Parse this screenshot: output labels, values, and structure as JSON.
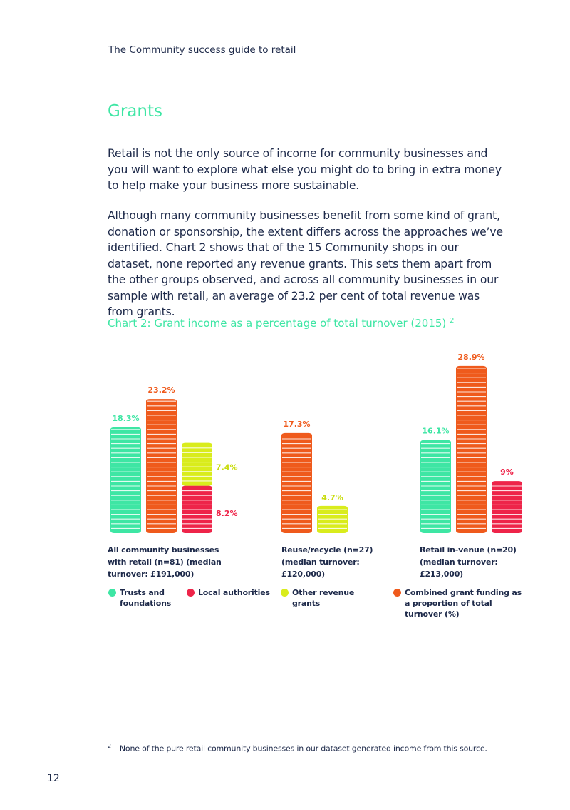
{
  "running_head": "The Community success guide to retail",
  "section_title": "Grants",
  "paragraphs": [
    "Retail is not the only source of income for community businesses and you will want to explore what else you might do to bring in extra money to help make your business more sustainable.",
    "Although many community businesses benefit from some kind of grant, donation or sponsorship, the extent differs across the approaches we’ve identified. Chart 2 shows that of the 15 Community shops in our dataset, none reported any revenue grants. This sets them apart from the other groups observed, and across all community businesses in our sample with retail, an average of 23.2 per cent of total revenue was from grants."
  ],
  "chart_title": "Chart 2: Grant income as a percentage of total turnover (2015)",
  "chart_title_footnote_ref": "2",
  "colors": {
    "trusts": "#3ee6a4",
    "local": "#ee2449",
    "other": "#d9ec1c",
    "combined": "#ef5a1c",
    "text": "#1e2a4a"
  },
  "chart_data": {
    "type": "bar",
    "title": "Chart 2: Grant income as a percentage of total turnover (2015)",
    "categories": [
      "All community businesses with retail (n=81) (median turnover: £191,000)",
      "Reuse/recycle (n=27) (median turnover: £120,000)",
      "Retail in-venue (n=20) (median turnover: £213,000)"
    ],
    "groups": [
      {
        "label_lines": [
          "All community businesses with",
          "retail (n=81) (median turnover:",
          "£191,000)"
        ],
        "bars": [
          {
            "series": "Trusts and foundations",
            "segments": [
              {
                "series": "trusts",
                "value": 18.3,
                "label": "18.3%"
              }
            ]
          },
          {
            "series": "Combined grant funding as a proportion of total turnover (%)",
            "segments": [
              {
                "series": "combined",
                "value": 23.2,
                "label": "23.2%"
              }
            ]
          },
          {
            "series": "Local authorities + Other revenue grants",
            "segments": [
              {
                "series": "local",
                "value": 8.2,
                "label": "8.2%"
              },
              {
                "series": "other",
                "value": 7.4,
                "label": "7.4%"
              }
            ]
          }
        ]
      },
      {
        "label_lines": [
          "Reuse/recycle (n=27)",
          "(median turnover:",
          "£120,000)"
        ],
        "bars": [
          {
            "series": "Combined grant funding as a proportion of total turnover (%)",
            "segments": [
              {
                "series": "combined",
                "value": 17.3,
                "label": "17.3%"
              }
            ]
          },
          {
            "series": "Other revenue grants",
            "segments": [
              {
                "series": "other",
                "value": 4.7,
                "label": "4.7%"
              }
            ]
          }
        ]
      },
      {
        "label_lines": [
          "Retail in-venue (n=20)",
          "(median turnover:",
          "£213,000)"
        ],
        "bars": [
          {
            "series": "Trusts and foundations",
            "segments": [
              {
                "series": "trusts",
                "value": 16.1,
                "label": "16.1%"
              }
            ]
          },
          {
            "series": "Combined grant funding as a proportion of total turnover (%)",
            "segments": [
              {
                "series": "combined",
                "value": 28.9,
                "label": "28.9%"
              }
            ]
          },
          {
            "series": "Local authorities",
            "segments": [
              {
                "series": "local",
                "value": 9,
                "label": "9%"
              }
            ]
          }
        ]
      }
    ],
    "legend": [
      {
        "key": "trusts",
        "label": "Trusts and foundations"
      },
      {
        "key": "local",
        "label": "Local authorities"
      },
      {
        "key": "other",
        "label": "Other revenue grants"
      },
      {
        "key": "combined",
        "label": "Combined grant funding as a proportion of total turnover (%)"
      }
    ],
    "legend_position": "bottom"
  },
  "group_labels": [
    "All community businesses with retail (n=81) (median turnover: £191,000)",
    "Reuse/recycle (n=27) (median turnover: £120,000)",
    "Retail in-venue (n=20) (median turnover: £213,000)"
  ],
  "legend_labels": {
    "trusts": "Trusts and foundations",
    "local": "Local authorities",
    "other": "Other revenue grants",
    "combined": "Combined grant funding as a proportion of total turnover (%)"
  },
  "footnote": {
    "marker": "2",
    "text": "None of the pure retail community businesses in our dataset generated income from this source."
  },
  "page_number": "12"
}
